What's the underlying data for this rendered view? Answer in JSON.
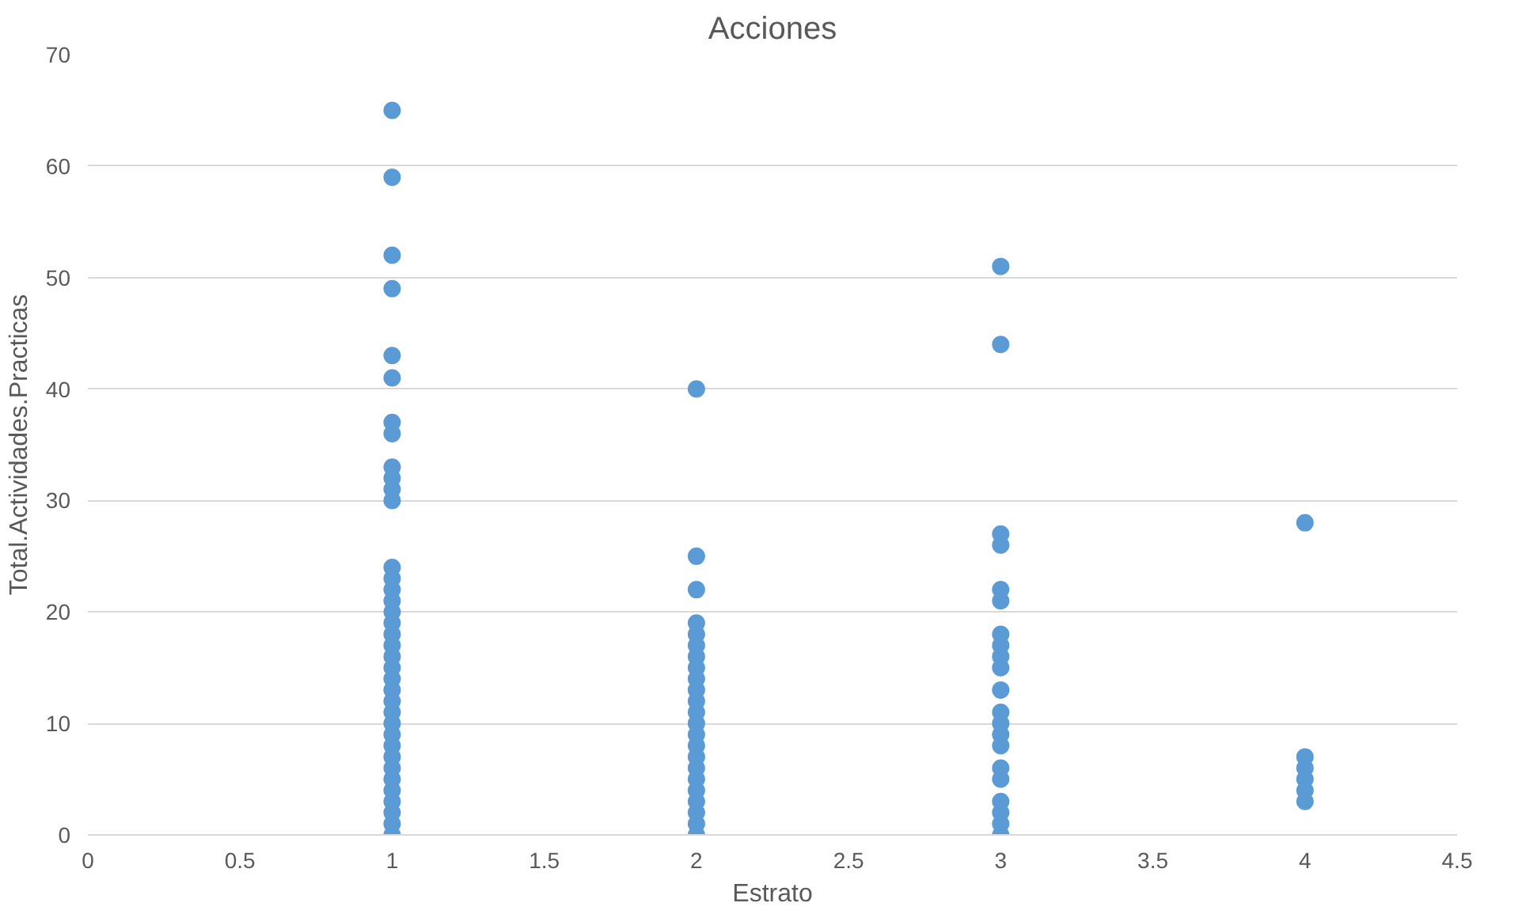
{
  "chart_data": {
    "type": "scatter",
    "title": "Acciones",
    "xlabel": "Estrato",
    "ylabel": "Total.Actividades.Practicas",
    "xlim": [
      0,
      4.5
    ],
    "xticks": [
      0,
      0.5,
      1,
      1.5,
      2,
      2.5,
      3,
      3.5,
      4,
      4.5
    ],
    "ylim": [
      0,
      70
    ],
    "yticks": [
      0,
      10,
      20,
      30,
      40,
      50,
      60,
      70
    ],
    "grid": "y",
    "marker": "circle",
    "series": [
      {
        "color": "#5b9bd5",
        "x": [
          1,
          1,
          1,
          1,
          1,
          1,
          1,
          1,
          1,
          1,
          1,
          1,
          1,
          1,
          1,
          1,
          1,
          1,
          1,
          1,
          1,
          1,
          1,
          1,
          1,
          1,
          1,
          1,
          1,
          1,
          1,
          1,
          1,
          1,
          1,
          1,
          1,
          2,
          2,
          2,
          2,
          2,
          2,
          2,
          2,
          2,
          2,
          2,
          2,
          2,
          2,
          2,
          2,
          2,
          2,
          2,
          2,
          2,
          2,
          2,
          3,
          3,
          3,
          3,
          3,
          3,
          3,
          3,
          3,
          3,
          3,
          3,
          3,
          3,
          3,
          3,
          3,
          3,
          3,
          3,
          3,
          4,
          4,
          4,
          4,
          4,
          4
        ],
        "values": [
          65,
          59,
          52,
          49,
          43,
          41,
          37,
          36,
          33,
          32,
          31,
          30,
          24,
          23,
          22,
          21,
          20,
          19,
          18,
          17,
          16,
          15,
          14,
          13,
          12,
          11,
          10,
          9,
          8,
          7,
          6,
          5,
          4,
          3,
          2,
          1,
          0,
          40,
          25,
          22,
          19,
          18,
          17,
          16,
          15,
          14,
          13,
          12,
          11,
          10,
          9,
          8,
          7,
          6,
          5,
          4,
          3,
          2,
          1,
          0,
          51,
          44,
          27,
          26,
          22,
          21,
          18,
          17,
          16,
          15,
          13,
          11,
          10,
          9,
          8,
          6,
          5,
          3,
          2,
          1,
          0,
          28,
          7,
          6,
          5,
          4,
          3
        ]
      }
    ]
  }
}
